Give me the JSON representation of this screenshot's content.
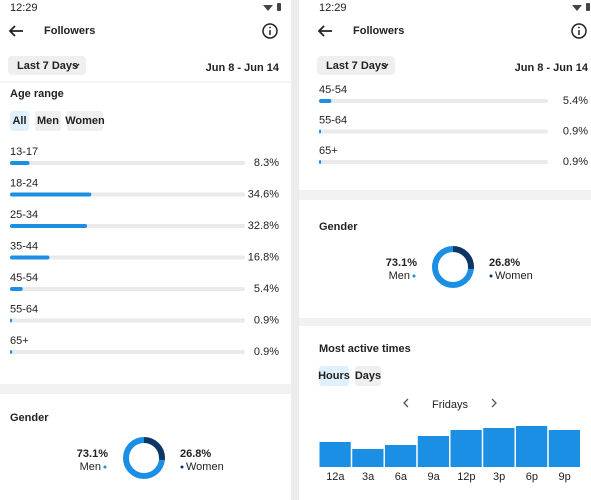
{
  "screens": [
    {
      "status_time": "12:29",
      "title": "Followers",
      "range_button": "Last 7 Days",
      "date_range": "Jun 8 - Jun 14",
      "age_range": {
        "title": "Age range",
        "tabs": [
          "All",
          "Men",
          "Women"
        ],
        "type": "bar",
        "categories": [
          "13-17",
          "18-24",
          "25-34",
          "35-44",
          "45-54",
          "55-64",
          "65+"
        ],
        "values": [
          8.3,
          34.6,
          32.8,
          16.8,
          5.4,
          0.9,
          0.9
        ],
        "value_labels": [
          "8.3%",
          "34.6%",
          "32.8%",
          "16.8%",
          "5.4%",
          "0.9%",
          "0.9%"
        ],
        "xlim": [
          0,
          100
        ],
        "color": "#1a8fe3"
      },
      "gender": {
        "title": "Gender",
        "type": "pie",
        "categories": [
          "Men",
          "Women"
        ],
        "values": [
          73.1,
          26.8
        ],
        "value_labels": [
          "73.1%",
          "26.8%"
        ],
        "colors": [
          "#1a8fe3",
          "#0d3566"
        ]
      }
    },
    {
      "status_time": "12:29",
      "title": "Followers",
      "range_button": "Last 7 Days",
      "date_range": "Jun 8 - Jun 14",
      "age_range": {
        "type": "bar",
        "categories": [
          "45-54",
          "55-64",
          "65+"
        ],
        "values": [
          5.4,
          0.9,
          0.9
        ],
        "value_labels": [
          "5.4%",
          "0.9%",
          "0.9%"
        ],
        "xlim": [
          0,
          100
        ],
        "color": "#1a8fe3"
      },
      "gender": {
        "title": "Gender",
        "type": "pie",
        "categories": [
          "Men",
          "Women"
        ],
        "values": [
          73.1,
          26.8
        ],
        "value_labels": [
          "73.1%",
          "26.8%"
        ],
        "colors": [
          "#1a8fe3",
          "#0d3566"
        ]
      },
      "active_times": {
        "title": "Most active times",
        "tabs": [
          "Hours",
          "Days"
        ],
        "day": "Fridays",
        "type": "bar",
        "categories": [
          "12a",
          "3a",
          "6a",
          "9a",
          "12p",
          "3p",
          "6p",
          "9p"
        ],
        "values": [
          25,
          18,
          22,
          31,
          37,
          39,
          41,
          37
        ],
        "color": "#1a8fe3"
      }
    }
  ]
}
